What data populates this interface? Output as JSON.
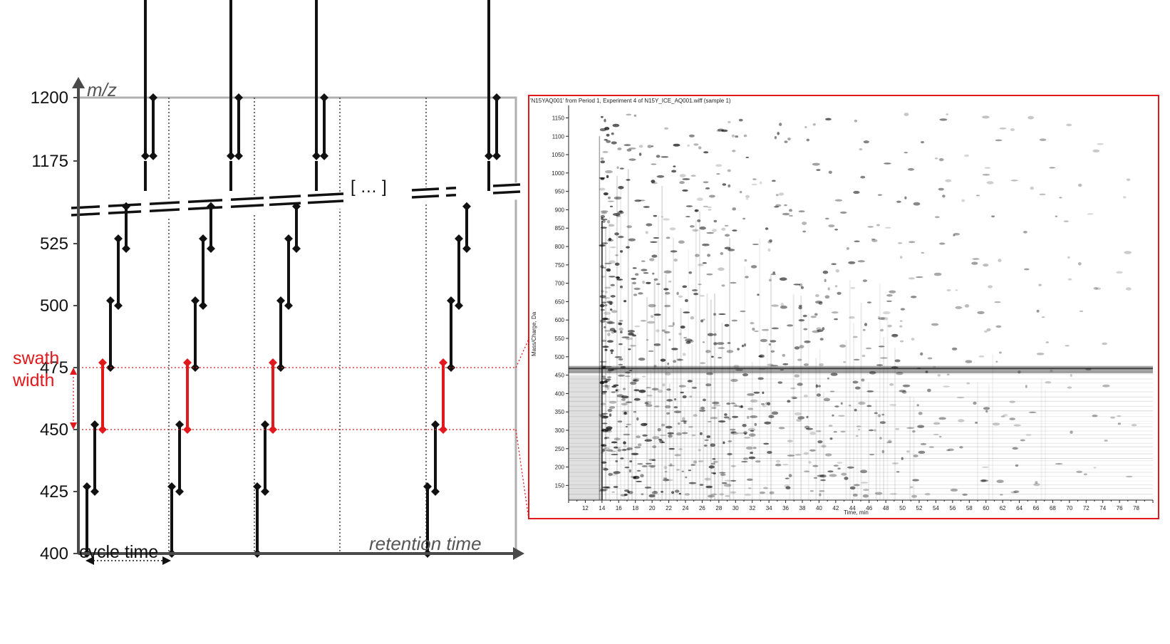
{
  "left_diagram": {
    "y_axis_label": "m/z",
    "x_axis_label": "retention time",
    "y_ticks_top": [
      "1200",
      "1175"
    ],
    "y_ticks_bottom": [
      "525",
      "500",
      "475",
      "450",
      "425",
      "400"
    ],
    "swath_label_line1": "swath",
    "swath_label_line2": "width",
    "cycle_label": "cycle time",
    "ellipsis": "[ … ]",
    "colors": {
      "swath": "#e0191c",
      "ink": "#111111",
      "grid": "#aaaaaa"
    }
  },
  "right_panel": {
    "header": "'N15YAQ001' from Period 1, Experiment 4 of N15Y_ICE_AQ001.wiff (sample 1)",
    "y_label": "Mass/Charge, Da",
    "x_label": "Time, min",
    "y_ticks": [
      "150",
      "200",
      "250",
      "300",
      "350",
      "400",
      "450",
      "500",
      "550",
      "600",
      "650",
      "700",
      "750",
      "800",
      "850",
      "900",
      "950",
      "1000",
      "1050",
      "1100",
      "1150"
    ],
    "x_ticks": [
      "12",
      "14",
      "16",
      "18",
      "20",
      "22",
      "24",
      "26",
      "28",
      "30",
      "32",
      "34",
      "36",
      "38",
      "40",
      "42",
      "44",
      "46",
      "48",
      "50",
      "52",
      "54",
      "56",
      "58",
      "60",
      "62",
      "64",
      "66",
      "68",
      "70",
      "72",
      "74",
      "76",
      "78"
    ],
    "border_color": "#e0191c"
  }
}
